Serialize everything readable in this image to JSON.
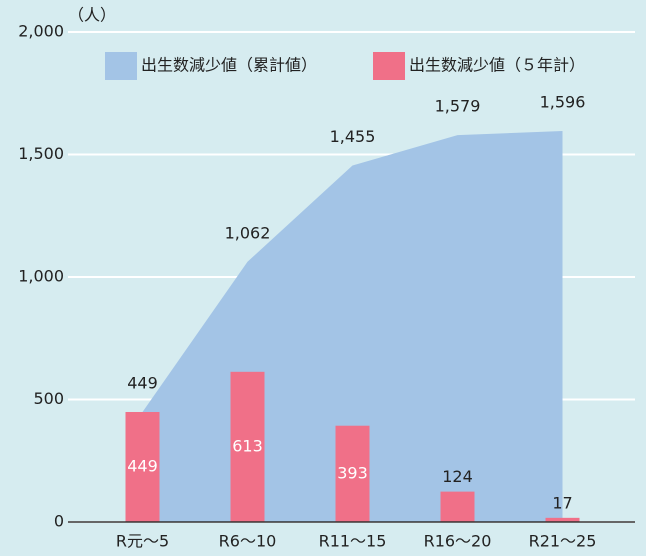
{
  "chart_data": {
    "type": "combo",
    "y_label": "（人）",
    "categories": [
      "R元～5",
      "R6～10",
      "R11～15",
      "R16～20",
      "R21～25"
    ],
    "series": [
      {
        "name": "出生数減少値（累計値）",
        "type": "area",
        "color": "#a3c4e6",
        "values": [
          449,
          1062,
          1455,
          1579,
          1596
        ],
        "value_labels": [
          "449",
          "1,062",
          "1,455",
          "1,579",
          "1,596"
        ]
      },
      {
        "name": "出生数減少値（５年計）",
        "type": "bar",
        "color": "#f07088",
        "values": [
          449,
          613,
          393,
          124,
          17
        ]
      }
    ],
    "ylim": [
      0,
      2000
    ],
    "yticks": [
      0,
      500,
      {
        "value": 1000,
        "label": "1,000"
      },
      {
        "value": 1500,
        "label": "1,500"
      },
      {
        "value": 2000,
        "label": "2,000"
      }
    ],
    "grid": true,
    "legend": "top"
  }
}
